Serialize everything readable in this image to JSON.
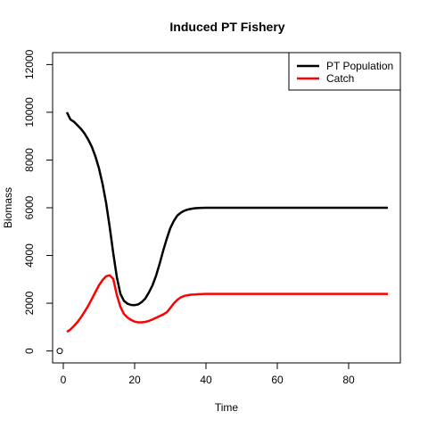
{
  "chart_data": {
    "type": "line",
    "title": "Induced PT Fishery",
    "xlabel": "Time",
    "ylabel": "Biomass",
    "xlim": [
      -3,
      94.5
    ],
    "ylim": [
      -500,
      12500
    ],
    "x_ticks": [
      0,
      20,
      40,
      60,
      80
    ],
    "y_ticks": [
      0,
      2000,
      4000,
      6000,
      8000,
      10000,
      12000
    ],
    "legend_position": "top-right",
    "grid": false,
    "points": [
      {
        "x": -1,
        "y": 0,
        "style": "open-circle"
      }
    ],
    "series": [
      {
        "name": "PT Population",
        "color": "#000000",
        "x": [
          1,
          2,
          3,
          4,
          5,
          6,
          7,
          8,
          9,
          10,
          11,
          12,
          13,
          14,
          15,
          16,
          17,
          18,
          19,
          20,
          21,
          22,
          23,
          24,
          25,
          26,
          27,
          28,
          29,
          30,
          31,
          32,
          33,
          34,
          35,
          36,
          37,
          38,
          39,
          40,
          42,
          44,
          46,
          48,
          50,
          55,
          60,
          65,
          70,
          75,
          80,
          85,
          91
        ],
        "y": [
          10000,
          9700,
          9600,
          9450,
          9300,
          9100,
          8850,
          8550,
          8150,
          7650,
          7000,
          6200,
          5200,
          4100,
          3100,
          2400,
          2100,
          1980,
          1930,
          1920,
          1950,
          2050,
          2200,
          2450,
          2750,
          3150,
          3650,
          4200,
          4700,
          5150,
          5450,
          5680,
          5800,
          5880,
          5930,
          5960,
          5980,
          5990,
          5995,
          6000,
          6000,
          6000,
          6000,
          6000,
          6000,
          6000,
          6000,
          6000,
          6000,
          6000,
          6000,
          6000,
          6000
        ]
      },
      {
        "name": "Catch",
        "color": "#ff0000",
        "x": [
          1,
          2,
          3,
          4,
          5,
          6,
          7,
          8,
          9,
          10,
          11,
          12,
          13,
          14,
          15,
          16,
          17,
          18,
          19,
          20,
          21,
          22,
          23,
          24,
          25,
          26,
          27,
          28,
          29,
          30,
          31,
          32,
          33,
          34,
          35,
          36,
          37,
          38,
          39,
          40,
          42,
          44,
          46,
          48,
          50,
          55,
          60,
          65,
          70,
          75,
          80,
          85,
          91
        ],
        "y": [
          800,
          900,
          1050,
          1220,
          1420,
          1650,
          1900,
          2180,
          2470,
          2750,
          2970,
          3130,
          3170,
          3020,
          2350,
          1850,
          1550,
          1400,
          1300,
          1230,
          1200,
          1200,
          1220,
          1260,
          1320,
          1390,
          1460,
          1530,
          1620,
          1800,
          2000,
          2150,
          2250,
          2310,
          2340,
          2360,
          2370,
          2380,
          2385,
          2390,
          2390,
          2390,
          2390,
          2390,
          2390,
          2390,
          2390,
          2390,
          2390,
          2390,
          2390,
          2390,
          2390
        ]
      }
    ]
  }
}
